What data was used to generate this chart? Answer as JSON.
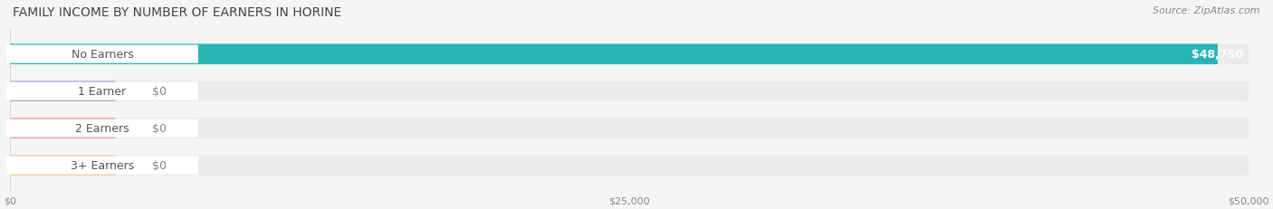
{
  "title": "FAMILY INCOME BY NUMBER OF EARNERS IN HORINE",
  "source": "Source: ZipAtlas.com",
  "categories": [
    "No Earners",
    "1 Earner",
    "2 Earners",
    "3+ Earners"
  ],
  "values": [
    48750,
    0,
    0,
    0
  ],
  "bar_colors": [
    "#2ab5b5",
    "#a8a8d8",
    "#f0919e",
    "#f5c992"
  ],
  "label_colors": [
    "#2ab5b5",
    "#a8a8d8",
    "#f0919e",
    "#f5c992"
  ],
  "background_color": "#f5f5f5",
  "bar_bg_color": "#ebebeb",
  "xlim": [
    0,
    50000
  ],
  "xticks": [
    0,
    25000,
    50000
  ],
  "xtick_labels": [
    "$0",
    "$25,000",
    "$50,000"
  ],
  "value_labels": [
    "$48,750",
    "$0",
    "$0",
    "$0"
  ],
  "bar_height": 0.55,
  "title_fontsize": 10,
  "source_fontsize": 8,
  "label_fontsize": 9,
  "tick_fontsize": 8
}
